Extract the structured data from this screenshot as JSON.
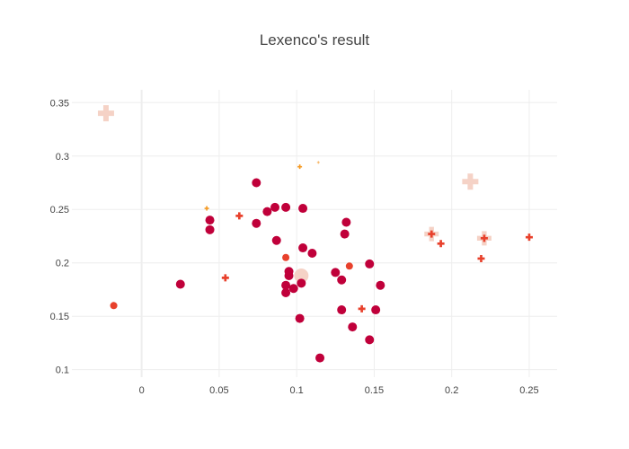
{
  "chart_data": {
    "type": "scatter",
    "title": "Lexenco's result",
    "xlabel": "",
    "ylabel": "",
    "xlim": [
      -0.045,
      0.268
    ],
    "ylim": [
      0.093,
      0.362
    ],
    "x_ticks": [
      0,
      0.05,
      0.1,
      0.15,
      0.2,
      0.25
    ],
    "x_tick_labels": [
      "0",
      "0.05",
      "0.1",
      "0.15",
      "0.2",
      "0.25"
    ],
    "y_ticks": [
      0.1,
      0.15,
      0.2,
      0.25,
      0.3,
      0.35
    ],
    "y_tick_labels": [
      "0.1",
      "0.15",
      "0.2",
      "0.25",
      "0.3",
      "0.35"
    ],
    "grid": true,
    "legend": false,
    "colors": {
      "dark_red": "#c0003a",
      "red": "#e8412c",
      "orange": "#f59a23",
      "light_orange": "#f7b562",
      "pale_pink": "#f5d2c6",
      "grid": "#eeeeee"
    },
    "points": [
      {
        "x": -0.023,
        "y": 0.34,
        "symbol": "cross",
        "color": "pale_pink",
        "size": "xl"
      },
      {
        "x": -0.018,
        "y": 0.16,
        "symbol": "circle",
        "color": "pale_pink",
        "size": "sm"
      },
      {
        "x": -0.018,
        "y": 0.16,
        "symbol": "circle",
        "color": "red",
        "size": "sm"
      },
      {
        "x": 0.025,
        "y": 0.18,
        "symbol": "circle",
        "color": "dark_red",
        "size": "md"
      },
      {
        "x": 0.042,
        "y": 0.251,
        "symbol": "cross",
        "color": "orange",
        "size": "xs"
      },
      {
        "x": 0.044,
        "y": 0.24,
        "symbol": "circle",
        "color": "dark_red",
        "size": "md"
      },
      {
        "x": 0.044,
        "y": 0.231,
        "symbol": "circle",
        "color": "dark_red",
        "size": "md"
      },
      {
        "x": 0.054,
        "y": 0.186,
        "symbol": "cross",
        "color": "red",
        "size": "sm"
      },
      {
        "x": 0.063,
        "y": 0.244,
        "symbol": "cross",
        "color": "red",
        "size": "sm"
      },
      {
        "x": 0.074,
        "y": 0.275,
        "symbol": "circle",
        "color": "dark_red",
        "size": "md"
      },
      {
        "x": 0.074,
        "y": 0.237,
        "symbol": "circle",
        "color": "dark_red",
        "size": "md"
      },
      {
        "x": 0.081,
        "y": 0.248,
        "symbol": "circle",
        "color": "dark_red",
        "size": "md"
      },
      {
        "x": 0.086,
        "y": 0.252,
        "symbol": "circle",
        "color": "dark_red",
        "size": "md"
      },
      {
        "x": 0.087,
        "y": 0.221,
        "symbol": "circle",
        "color": "dark_red",
        "size": "md"
      },
      {
        "x": 0.093,
        "y": 0.252,
        "symbol": "circle",
        "color": "dark_red",
        "size": "md"
      },
      {
        "x": 0.093,
        "y": 0.205,
        "symbol": "circle",
        "color": "red",
        "size": "sm"
      },
      {
        "x": 0.093,
        "y": 0.179,
        "symbol": "circle",
        "color": "dark_red",
        "size": "md"
      },
      {
        "x": 0.093,
        "y": 0.172,
        "symbol": "circle",
        "color": "dark_red",
        "size": "md"
      },
      {
        "x": 0.095,
        "y": 0.192,
        "symbol": "circle",
        "color": "dark_red",
        "size": "md"
      },
      {
        "x": 0.095,
        "y": 0.188,
        "symbol": "circle",
        "color": "dark_red",
        "size": "md"
      },
      {
        "x": 0.098,
        "y": 0.176,
        "symbol": "circle",
        "color": "dark_red",
        "size": "md"
      },
      {
        "x": 0.102,
        "y": 0.29,
        "symbol": "cross",
        "color": "orange",
        "size": "xs"
      },
      {
        "x": 0.102,
        "y": 0.148,
        "symbol": "circle",
        "color": "dark_red",
        "size": "md"
      },
      {
        "x": 0.103,
        "y": 0.188,
        "symbol": "circle",
        "color": "pale_pink",
        "size": "lg"
      },
      {
        "x": 0.103,
        "y": 0.181,
        "symbol": "circle",
        "color": "dark_red",
        "size": "md"
      },
      {
        "x": 0.104,
        "y": 0.251,
        "symbol": "circle",
        "color": "dark_red",
        "size": "md"
      },
      {
        "x": 0.104,
        "y": 0.214,
        "symbol": "circle",
        "color": "dark_red",
        "size": "md"
      },
      {
        "x": 0.11,
        "y": 0.209,
        "symbol": "circle",
        "color": "dark_red",
        "size": "md"
      },
      {
        "x": 0.114,
        "y": 0.294,
        "symbol": "cross",
        "color": "light_orange",
        "size": "xxs"
      },
      {
        "x": 0.115,
        "y": 0.111,
        "symbol": "circle",
        "color": "dark_red",
        "size": "md"
      },
      {
        "x": 0.125,
        "y": 0.191,
        "symbol": "circle",
        "color": "dark_red",
        "size": "md"
      },
      {
        "x": 0.129,
        "y": 0.184,
        "symbol": "circle",
        "color": "dark_red",
        "size": "md"
      },
      {
        "x": 0.129,
        "y": 0.156,
        "symbol": "circle",
        "color": "dark_red",
        "size": "md"
      },
      {
        "x": 0.131,
        "y": 0.227,
        "symbol": "circle",
        "color": "dark_red",
        "size": "md"
      },
      {
        "x": 0.132,
        "y": 0.238,
        "symbol": "circle",
        "color": "dark_red",
        "size": "md"
      },
      {
        "x": 0.134,
        "y": 0.197,
        "symbol": "circle",
        "color": "red",
        "size": "sm"
      },
      {
        "x": 0.136,
        "y": 0.14,
        "symbol": "circle",
        "color": "dark_red",
        "size": "md"
      },
      {
        "x": 0.142,
        "y": 0.157,
        "symbol": "cross",
        "color": "red",
        "size": "sm"
      },
      {
        "x": 0.147,
        "y": 0.199,
        "symbol": "circle",
        "color": "dark_red",
        "size": "md"
      },
      {
        "x": 0.147,
        "y": 0.128,
        "symbol": "circle",
        "color": "dark_red",
        "size": "md"
      },
      {
        "x": 0.151,
        "y": 0.156,
        "symbol": "circle",
        "color": "dark_red",
        "size": "md"
      },
      {
        "x": 0.154,
        "y": 0.179,
        "symbol": "circle",
        "color": "dark_red",
        "size": "md"
      },
      {
        "x": 0.187,
        "y": 0.227,
        "symbol": "cross",
        "color": "pale_pink",
        "size": "lg"
      },
      {
        "x": 0.187,
        "y": 0.227,
        "symbol": "cross",
        "color": "red",
        "size": "sm"
      },
      {
        "x": 0.193,
        "y": 0.218,
        "symbol": "cross",
        "color": "red",
        "size": "sm"
      },
      {
        "x": 0.212,
        "y": 0.276,
        "symbol": "cross",
        "color": "pale_pink",
        "size": "xl"
      },
      {
        "x": 0.219,
        "y": 0.204,
        "symbol": "cross",
        "color": "red",
        "size": "sm"
      },
      {
        "x": 0.221,
        "y": 0.223,
        "symbol": "cross",
        "color": "pale_pink",
        "size": "lg"
      },
      {
        "x": 0.221,
        "y": 0.223,
        "symbol": "cross",
        "color": "red",
        "size": "sm"
      },
      {
        "x": 0.25,
        "y": 0.224,
        "symbol": "cross",
        "color": "red",
        "size": "sm"
      }
    ]
  }
}
